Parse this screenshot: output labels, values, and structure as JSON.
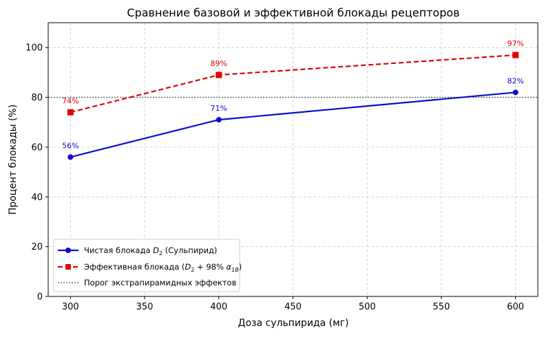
{
  "chart_data": {
    "type": "line",
    "title": "Сравнение базовой и эффективной блокады рецепторов",
    "xlabel": "Доза сульпирида (мг)",
    "ylabel": "Процент блокады (%)",
    "x": [
      300,
      400,
      600
    ],
    "xlim": [
      285,
      615
    ],
    "ylim": [
      0,
      110
    ],
    "x_ticks": [
      300,
      350,
      400,
      450,
      500,
      550,
      600
    ],
    "y_ticks": [
      0,
      20,
      40,
      60,
      80,
      100
    ],
    "grid": true,
    "legend_position": "bottom-left",
    "series": [
      {
        "name": "Чистая блокада D₂ (Сульпирид)",
        "values": [
          56,
          71,
          82
        ],
        "labels": [
          "56%",
          "71%",
          "82%"
        ],
        "color": "#0b0bd0",
        "marker": "circle",
        "line_style": "solid"
      },
      {
        "name": "Эффективная блокада (D₂ + 98% α1B)",
        "values": [
          74,
          89,
          97
        ],
        "labels": [
          "74%",
          "89%",
          "97%"
        ],
        "color": "#e00000",
        "marker": "square",
        "line_style": "dashed"
      }
    ],
    "reference_line": {
      "name": "Порог экстрапирамидных эффектов",
      "value": 80,
      "color": "#707070",
      "line_style": "dotted"
    }
  }
}
